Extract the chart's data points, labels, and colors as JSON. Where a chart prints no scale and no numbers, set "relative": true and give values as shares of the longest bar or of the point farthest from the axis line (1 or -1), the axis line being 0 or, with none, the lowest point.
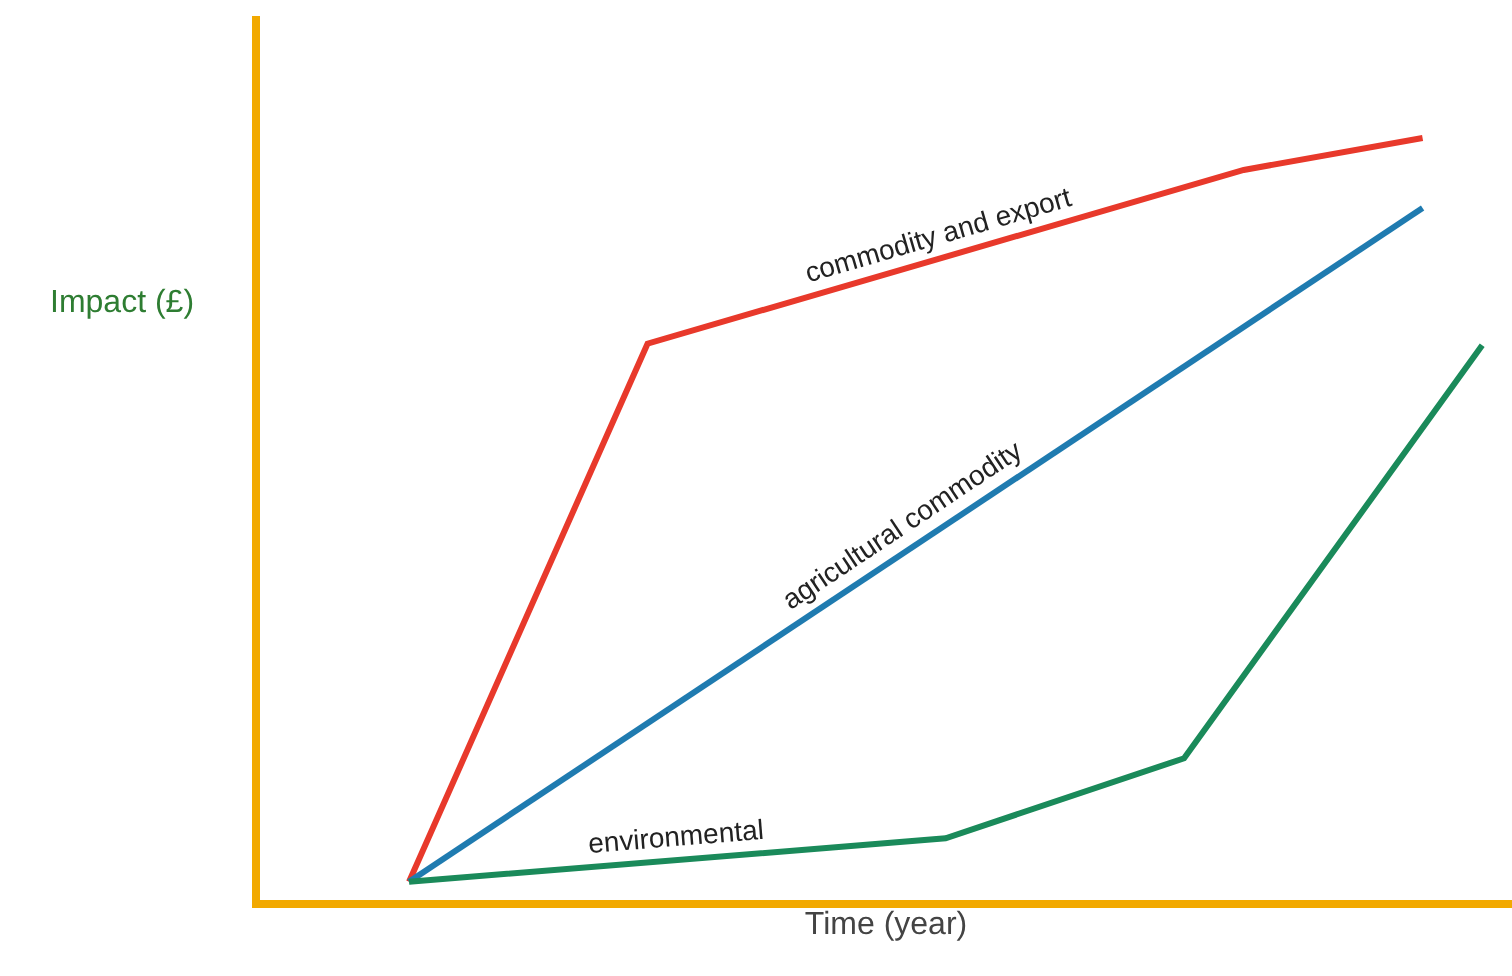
{
  "chart_data": {
    "type": "line",
    "relative": true,
    "xlabel": "Time (year)",
    "ylabel": "Impact (£)",
    "categories": [
      null,
      null,
      null,
      null,
      null,
      null,
      null,
      null,
      null,
      null,
      null,
      null,
      null,
      null,
      null,
      null,
      null,
      null,
      null,
      null,
      null
    ],
    "tick_labels": false,
    "marker": "none",
    "line_style": "solid",
    "legend": false,
    "series": [
      {
        "name": "commodity and export",
        "color": "#e8392b",
        "values": [
          null,
          null,
          0.024,
          null,
          null,
          null,
          0.73,
          null,
          null,
          null,
          null,
          null,
          null,
          null,
          null,
          null,
          0.958,
          null,
          null,
          1,
          null
        ]
      },
      {
        "name": "agricultural commodity",
        "color": "#1f7bb0",
        "values": [
          null,
          null,
          0.024,
          null,
          null,
          null,
          null,
          null,
          null,
          null,
          null,
          null,
          null,
          null,
          null,
          null,
          null,
          null,
          null,
          0.908,
          null
        ]
      },
      {
        "name": "environmental",
        "color": "#1a8a5a",
        "values": [
          null,
          null,
          0.024,
          null,
          null,
          null,
          null,
          null,
          null,
          null,
          null,
          0.081,
          null,
          null,
          null,
          0.186,
          null,
          null,
          null,
          null,
          0.728
        ]
      }
    ]
  }
}
